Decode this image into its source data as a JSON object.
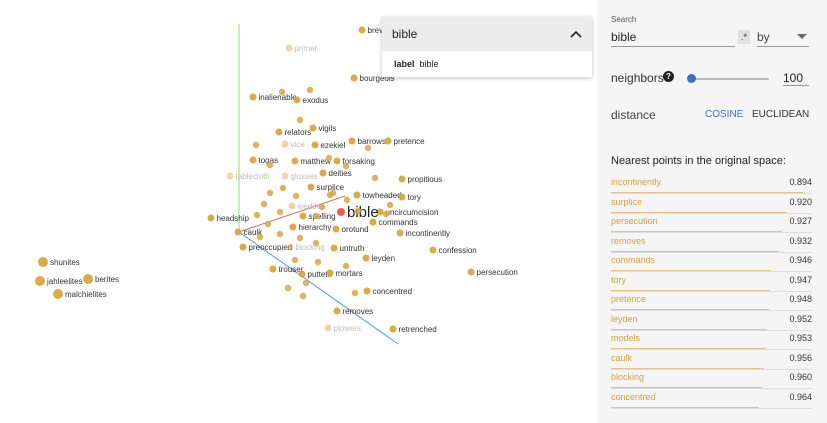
{
  "dropdown": {
    "title": "bible",
    "row_key": "label",
    "row_value": "bible"
  },
  "panel": {
    "search_label": "Search",
    "search_value": "bible",
    "regex_label": ".*",
    "by_value": "by",
    "neighbors_label": "neighbors",
    "help_glyph": "?",
    "neighbors_value": "100",
    "neighbors_fraction": 0.03,
    "distance_label": "distance",
    "cosine_label": "COSINE",
    "euclidean_label": "EUCLIDEAN",
    "nearest_title": "Nearest points in the original space:",
    "nearest": [
      {
        "word": "incontinently",
        "dist": "0.894"
      },
      {
        "word": "surplice",
        "dist": "0.920"
      },
      {
        "word": "persecution",
        "dist": "0.927"
      },
      {
        "word": "removes",
        "dist": "0.932"
      },
      {
        "word": "commands",
        "dist": "0.946"
      },
      {
        "word": "tory",
        "dist": "0.947"
      },
      {
        "word": "pretence",
        "dist": "0.948"
      },
      {
        "word": "leyden",
        "dist": "0.952"
      },
      {
        "word": "models",
        "dist": "0.953"
      },
      {
        "word": "caulk",
        "dist": "0.956"
      },
      {
        "word": "blocking",
        "dist": "0.960"
      },
      {
        "word": "concentred",
        "dist": "0.964"
      }
    ]
  },
  "colors": {
    "point": "#d9a53f",
    "accent": "#3b6fd6",
    "focus": "#e8574a",
    "axis_y": "#8fe06a",
    "axis_z": "#4a9de0",
    "axis_x": "#e06a5a"
  },
  "labels": [
    {
      "t": "brevi",
      "f": false
    },
    {
      "t": "primer",
      "f": true
    },
    {
      "t": "bourgeois",
      "f": false
    },
    {
      "t": "inalienable",
      "f": false
    },
    {
      "t": "exodus",
      "f": false
    },
    {
      "t": "vigils",
      "f": false
    },
    {
      "t": "relators",
      "f": false
    },
    {
      "t": "vice",
      "f": true
    },
    {
      "t": "ezekiel",
      "f": false
    },
    {
      "t": "barrows",
      "f": false
    },
    {
      "t": "pretence",
      "f": false
    },
    {
      "t": "togas",
      "f": false
    },
    {
      "t": "matthew",
      "f": false
    },
    {
      "t": "forsaking",
      "f": false
    },
    {
      "t": "deities",
      "f": false
    },
    {
      "t": "tablecloth",
      "f": true
    },
    {
      "t": "glosses",
      "f": true
    },
    {
      "t": "propitious",
      "f": false
    },
    {
      "t": "surplice",
      "f": false
    },
    {
      "t": "towheaded",
      "f": false
    },
    {
      "t": "tory",
      "f": false
    },
    {
      "t": "wedder",
      "f": true
    },
    {
      "t": "uncircumcision",
      "f": false
    },
    {
      "t": "headship",
      "f": false
    },
    {
      "t": "spelling",
      "f": false
    },
    {
      "t": "commands",
      "f": false
    },
    {
      "t": "caulk",
      "f": false
    },
    {
      "t": "hierarchy",
      "f": false
    },
    {
      "t": "orotund",
      "f": false
    },
    {
      "t": "incontinently",
      "f": false
    },
    {
      "t": "preoccupied",
      "f": false
    },
    {
      "t": "blocking",
      "f": true
    },
    {
      "t": "untruth",
      "f": false
    },
    {
      "t": "confession",
      "f": false
    },
    {
      "t": "leyden",
      "f": false
    },
    {
      "t": "trouser",
      "f": false
    },
    {
      "t": "putteth",
      "f": false
    },
    {
      "t": "mortars",
      "f": false
    },
    {
      "t": "persecution",
      "f": false
    },
    {
      "t": "shunites",
      "f": false
    },
    {
      "t": "jahleelites",
      "f": false
    },
    {
      "t": "berites",
      "f": false
    },
    {
      "t": "malchielites",
      "f": false
    },
    {
      "t": "concentred",
      "f": false
    },
    {
      "t": "removes",
      "f": false
    },
    {
      "t": "plowers",
      "f": true
    },
    {
      "t": "retrenched",
      "f": false
    },
    {
      "t": "bible",
      "f": false
    }
  ]
}
